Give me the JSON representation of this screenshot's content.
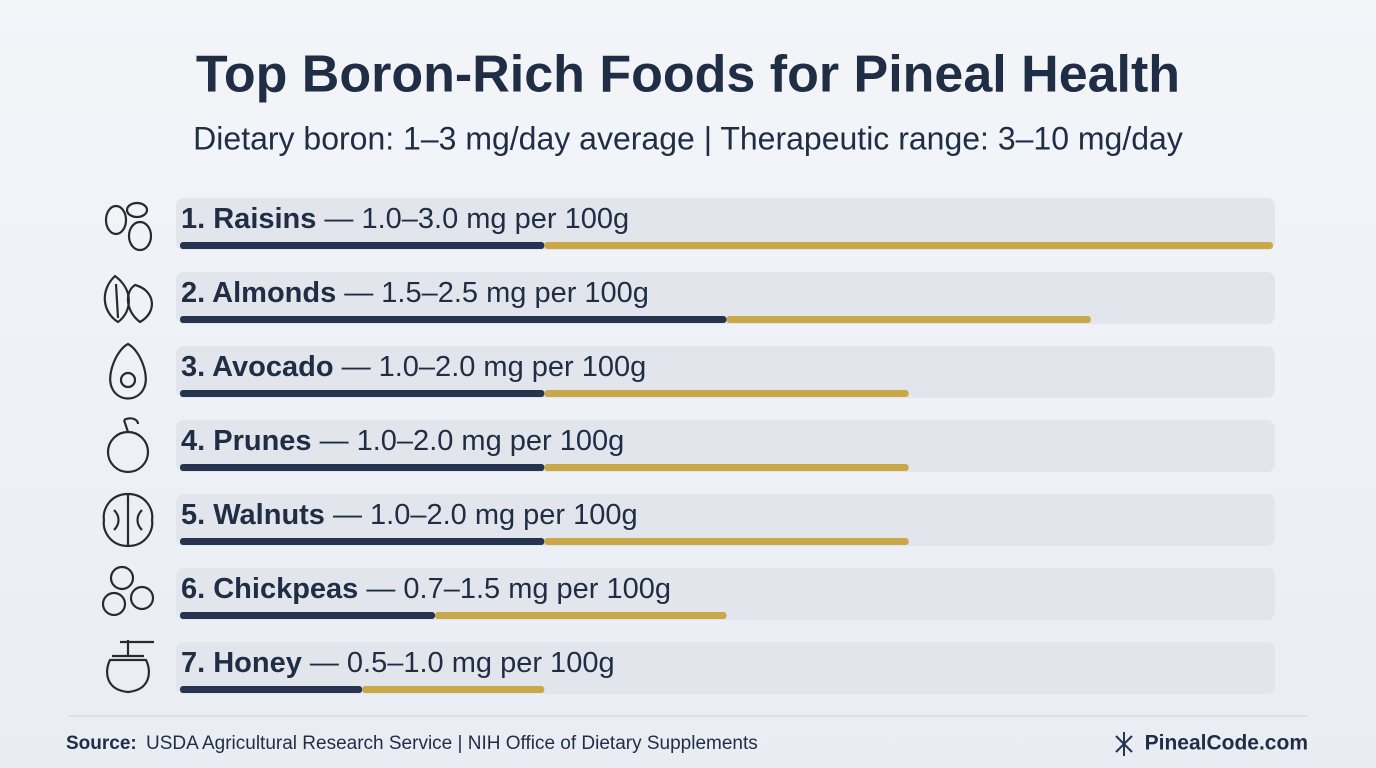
{
  "chart_data": {
    "type": "range_bar",
    "title": "Top Boron-Rich Foods for Pineal Health",
    "subtitle": "Dietary boron: 1–3 mg/day average | Therapeutic range: 3–10 mg/day",
    "categories": [
      "1. Raisins",
      "2. Almonds",
      "3. Avocado",
      "4. Prunes",
      "5. Walnuts",
      "6. Chickpeas",
      "7. Honey"
    ],
    "low": [
      1.0,
      1.5,
      1.0,
      1.0,
      1.0,
      0.7,
      0.5
    ],
    "high": [
      3.0,
      2.5,
      2.0,
      2.0,
      2.0,
      1.5,
      1.0
    ],
    "value_labels": [
      "— 1.0–3.0 mg per 100g",
      "— 1.5–2.5 mg per 100g",
      "— 1.0–2.0 mg per 100g",
      "— 1.0–2.0 mg per 100g",
      "— 1.0–2.0 mg per 100g",
      "— 0.7–1.5 mg per 100g",
      "— 0.5–1.0 mg per 100g"
    ],
    "xlim": [
      0,
      3
    ],
    "low_color": "#27344f",
    "high_color": "#c9a84a"
  },
  "footer": {
    "source_label": "Source:",
    "source": "USDA Agricultural Research Service | NIH Office of Dietary Supplements",
    "brand": "PinealCode.com"
  }
}
